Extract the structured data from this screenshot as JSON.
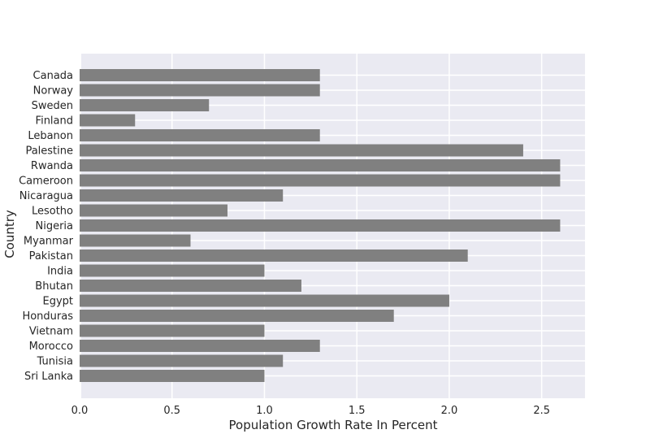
{
  "chart_data": {
    "type": "bar",
    "orientation": "horizontal",
    "xlabel": "Population Growth Rate In Percent",
    "ylabel": "Country",
    "xlim": [
      0,
      2.73
    ],
    "xticks": [
      {
        "value": 0,
        "label": "0.0"
      },
      {
        "value": 0.5,
        "label": "0.5"
      },
      {
        "value": 1,
        "label": "1.0"
      },
      {
        "value": 1.5,
        "label": "1.5"
      },
      {
        "value": 2,
        "label": "2.0"
      },
      {
        "value": 2.5,
        "label": "2.5"
      }
    ],
    "grid": true,
    "bar_color": "#808080",
    "background_color": "#EAEAF2",
    "grid_color": "#FFFFFF",
    "categories": [
      "Canada",
      "Norway",
      "Sweden",
      "Finland",
      "Lebanon",
      "Palestine",
      "Rwanda",
      "Cameroon",
      "Nicaragua",
      "Lesotho",
      "Nigeria",
      "Myanmar",
      "Pakistan",
      "India",
      "Bhutan",
      "Egypt",
      "Honduras",
      "Vietnam",
      "Morocco",
      "Tunisia",
      "Sri Lanka"
    ],
    "values": [
      1.3,
      1.3,
      0.7,
      0.3,
      1.3,
      2.4,
      2.6,
      2.6,
      1.1,
      0.8,
      2.6,
      0.6,
      2.1,
      1.0,
      1.2,
      2.0,
      1.7,
      1.0,
      1.3,
      1.1,
      1.0
    ]
  }
}
